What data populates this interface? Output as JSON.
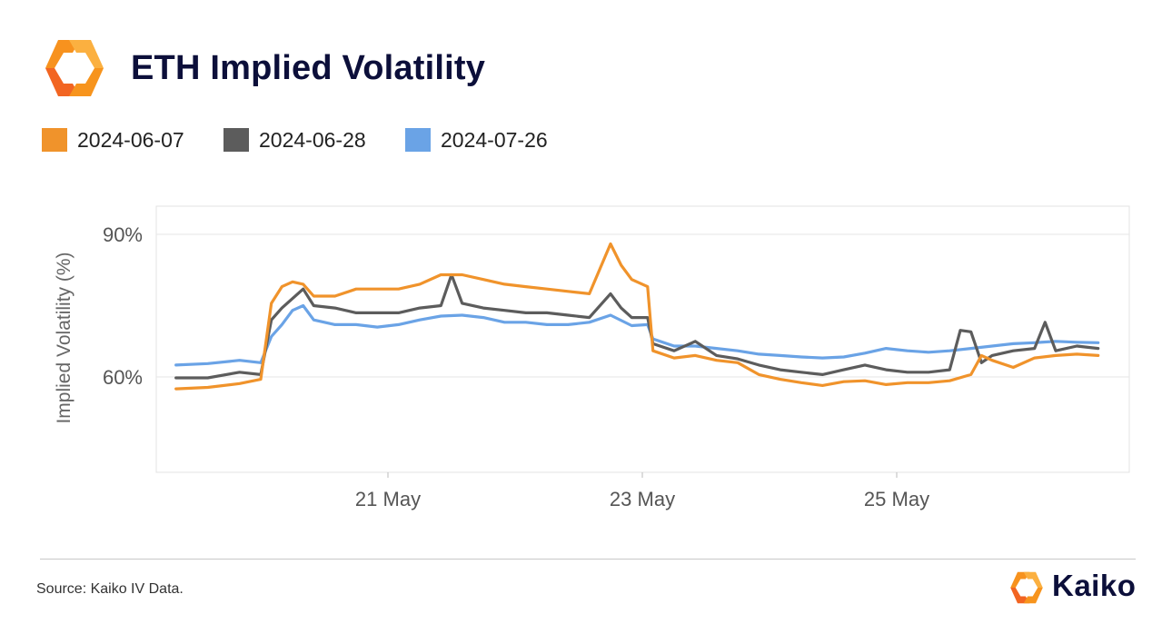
{
  "header": {
    "title": "ETH Implied Volatility"
  },
  "footer": {
    "source": "Source: Kaiko IV Data.",
    "brand": "Kaiko"
  },
  "colors": {
    "series_2024_06_07": "#f0932b",
    "series_2024_06_28": "#5c5c5c",
    "series_2024_07_26": "#6aa3e6",
    "title": "#0c0f3a",
    "brand_orange": "#f7921e"
  },
  "icons": {
    "main_logo": "kaiko-logo-icon",
    "footer_logo": "kaiko-logo-icon"
  },
  "chart_data": {
    "type": "line",
    "title": "ETH Implied Volatility",
    "xlabel": "",
    "ylabel": "Implied Volatility (%)",
    "x_ticks": [
      "21 May",
      "23 May",
      "25 May"
    ],
    "y_ticks": [
      "60%",
      "90%"
    ],
    "ylim": [
      40,
      92
    ],
    "xlim": [
      "2024-05-19 16:00",
      "2024-05-26 20:00"
    ],
    "grid": true,
    "legend_position": "top-left",
    "series": [
      {
        "name": "2024-06-07",
        "color": "#f0932b",
        "points": [
          [
            "2024-05-19 08:00",
            57.5
          ],
          [
            "2024-05-19 14:00",
            57.8
          ],
          [
            "2024-05-19 20:00",
            58.6
          ],
          [
            "2024-05-20 00:00",
            59.5
          ],
          [
            "2024-05-20 02:00",
            75.5
          ],
          [
            "2024-05-20 04:00",
            79.0
          ],
          [
            "2024-05-20 06:00",
            80.0
          ],
          [
            "2024-05-20 08:00",
            79.5
          ],
          [
            "2024-05-20 10:00",
            77.0
          ],
          [
            "2024-05-20 14:00",
            77.0
          ],
          [
            "2024-05-20 18:00",
            78.5
          ],
          [
            "2024-05-20 22:00",
            78.5
          ],
          [
            "2024-05-21 02:00",
            78.5
          ],
          [
            "2024-05-21 06:00",
            79.5
          ],
          [
            "2024-05-21 10:00",
            81.5
          ],
          [
            "2024-05-21 14:00",
            81.5
          ],
          [
            "2024-05-21 18:00",
            80.5
          ],
          [
            "2024-05-21 22:00",
            79.5
          ],
          [
            "2024-05-22 02:00",
            79.0
          ],
          [
            "2024-05-22 06:00",
            78.5
          ],
          [
            "2024-05-22 10:00",
            78.0
          ],
          [
            "2024-05-22 14:00",
            77.5
          ],
          [
            "2024-05-22 18:00",
            88.0
          ],
          [
            "2024-05-22 20:00",
            83.5
          ],
          [
            "2024-05-22 22:00",
            80.5
          ],
          [
            "2024-05-23 01:00",
            79.0
          ],
          [
            "2024-05-23 02:00",
            65.5
          ],
          [
            "2024-05-23 06:00",
            64.0
          ],
          [
            "2024-05-23 10:00",
            64.5
          ],
          [
            "2024-05-23 14:00",
            63.5
          ],
          [
            "2024-05-23 18:00",
            63.0
          ],
          [
            "2024-05-23 22:00",
            60.5
          ],
          [
            "2024-05-24 02:00",
            59.5
          ],
          [
            "2024-05-24 06:00",
            58.8
          ],
          [
            "2024-05-24 10:00",
            58.2
          ],
          [
            "2024-05-24 14:00",
            59.0
          ],
          [
            "2024-05-24 18:00",
            59.2
          ],
          [
            "2024-05-24 22:00",
            58.4
          ],
          [
            "2024-05-25 02:00",
            58.8
          ],
          [
            "2024-05-25 06:00",
            58.8
          ],
          [
            "2024-05-25 10:00",
            59.2
          ],
          [
            "2024-05-25 14:00",
            60.5
          ],
          [
            "2024-05-25 16:00",
            64.5
          ],
          [
            "2024-05-25 18:00",
            63.5
          ],
          [
            "2024-05-25 22:00",
            62.0
          ],
          [
            "2024-05-26 02:00",
            64.0
          ],
          [
            "2024-05-26 06:00",
            64.5
          ],
          [
            "2024-05-26 10:00",
            64.8
          ],
          [
            "2024-05-26 14:00",
            64.5
          ]
        ]
      },
      {
        "name": "2024-06-28",
        "color": "#5c5c5c",
        "points": [
          [
            "2024-05-19 08:00",
            59.8
          ],
          [
            "2024-05-19 14:00",
            59.8
          ],
          [
            "2024-05-19 20:00",
            61.0
          ],
          [
            "2024-05-20 00:00",
            60.5
          ],
          [
            "2024-05-20 02:00",
            72.0
          ],
          [
            "2024-05-20 04:00",
            74.5
          ],
          [
            "2024-05-20 08:00",
            78.5
          ],
          [
            "2024-05-20 10:00",
            75.0
          ],
          [
            "2024-05-20 14:00",
            74.5
          ],
          [
            "2024-05-20 18:00",
            73.5
          ],
          [
            "2024-05-20 22:00",
            73.5
          ],
          [
            "2024-05-21 02:00",
            73.5
          ],
          [
            "2024-05-21 06:00",
            74.5
          ],
          [
            "2024-05-21 10:00",
            75.0
          ],
          [
            "2024-05-21 12:00",
            81.5
          ],
          [
            "2024-05-21 14:00",
            75.5
          ],
          [
            "2024-05-21 18:00",
            74.5
          ],
          [
            "2024-05-21 22:00",
            74.0
          ],
          [
            "2024-05-22 02:00",
            73.5
          ],
          [
            "2024-05-22 06:00",
            73.5
          ],
          [
            "2024-05-22 10:00",
            73.0
          ],
          [
            "2024-05-22 14:00",
            72.5
          ],
          [
            "2024-05-22 18:00",
            77.5
          ],
          [
            "2024-05-22 20:00",
            74.5
          ],
          [
            "2024-05-22 22:00",
            72.5
          ],
          [
            "2024-05-23 01:00",
            72.5
          ],
          [
            "2024-05-23 02:00",
            67.0
          ],
          [
            "2024-05-23 06:00",
            65.5
          ],
          [
            "2024-05-23 10:00",
            67.5
          ],
          [
            "2024-05-23 14:00",
            64.5
          ],
          [
            "2024-05-23 18:00",
            63.8
          ],
          [
            "2024-05-23 22:00",
            62.5
          ],
          [
            "2024-05-24 02:00",
            61.5
          ],
          [
            "2024-05-24 06:00",
            61.0
          ],
          [
            "2024-05-24 10:00",
            60.5
          ],
          [
            "2024-05-24 14:00",
            61.5
          ],
          [
            "2024-05-24 18:00",
            62.5
          ],
          [
            "2024-05-24 22:00",
            61.5
          ],
          [
            "2024-05-25 02:00",
            61.0
          ],
          [
            "2024-05-25 06:00",
            61.0
          ],
          [
            "2024-05-25 10:00",
            61.5
          ],
          [
            "2024-05-25 12:00",
            69.8
          ],
          [
            "2024-05-25 14:00",
            69.5
          ],
          [
            "2024-05-25 16:00",
            63.0
          ],
          [
            "2024-05-25 18:00",
            64.5
          ],
          [
            "2024-05-25 22:00",
            65.5
          ],
          [
            "2024-05-26 02:00",
            66.0
          ],
          [
            "2024-05-26 04:00",
            71.5
          ],
          [
            "2024-05-26 06:00",
            65.5
          ],
          [
            "2024-05-26 10:00",
            66.5
          ],
          [
            "2024-05-26 14:00",
            66.0
          ]
        ]
      },
      {
        "name": "2024-07-26",
        "color": "#6aa3e6",
        "points": [
          [
            "2024-05-19 08:00",
            62.5
          ],
          [
            "2024-05-19 14:00",
            62.8
          ],
          [
            "2024-05-19 20:00",
            63.5
          ],
          [
            "2024-05-20 00:00",
            63.0
          ],
          [
            "2024-05-20 02:00",
            68.5
          ],
          [
            "2024-05-20 04:00",
            71.0
          ],
          [
            "2024-05-20 06:00",
            74.0
          ],
          [
            "2024-05-20 08:00",
            75.0
          ],
          [
            "2024-05-20 10:00",
            72.0
          ],
          [
            "2024-05-20 14:00",
            71.0
          ],
          [
            "2024-05-20 18:00",
            71.0
          ],
          [
            "2024-05-20 22:00",
            70.5
          ],
          [
            "2024-05-21 02:00",
            71.0
          ],
          [
            "2024-05-21 06:00",
            72.0
          ],
          [
            "2024-05-21 10:00",
            72.8
          ],
          [
            "2024-05-21 14:00",
            73.0
          ],
          [
            "2024-05-21 18:00",
            72.5
          ],
          [
            "2024-05-21 22:00",
            71.5
          ],
          [
            "2024-05-22 02:00",
            71.5
          ],
          [
            "2024-05-22 06:00",
            71.0
          ],
          [
            "2024-05-22 10:00",
            71.0
          ],
          [
            "2024-05-22 14:00",
            71.5
          ],
          [
            "2024-05-22 18:00",
            73.0
          ],
          [
            "2024-05-22 22:00",
            70.8
          ],
          [
            "2024-05-23 01:00",
            71.0
          ],
          [
            "2024-05-23 02:00",
            68.0
          ],
          [
            "2024-05-23 06:00",
            66.5
          ],
          [
            "2024-05-23 10:00",
            66.5
          ],
          [
            "2024-05-23 14:00",
            66.0
          ],
          [
            "2024-05-23 18:00",
            65.5
          ],
          [
            "2024-05-23 22:00",
            64.8
          ],
          [
            "2024-05-24 02:00",
            64.5
          ],
          [
            "2024-05-24 06:00",
            64.2
          ],
          [
            "2024-05-24 10:00",
            64.0
          ],
          [
            "2024-05-24 14:00",
            64.2
          ],
          [
            "2024-05-24 18:00",
            65.0
          ],
          [
            "2024-05-24 22:00",
            66.0
          ],
          [
            "2024-05-25 02:00",
            65.5
          ],
          [
            "2024-05-25 06:00",
            65.2
          ],
          [
            "2024-05-25 10:00",
            65.5
          ],
          [
            "2024-05-25 14:00",
            66.0
          ],
          [
            "2024-05-25 18:00",
            66.5
          ],
          [
            "2024-05-25 22:00",
            67.0
          ],
          [
            "2024-05-26 02:00",
            67.2
          ],
          [
            "2024-05-26 06:00",
            67.5
          ],
          [
            "2024-05-26 10:00",
            67.3
          ],
          [
            "2024-05-26 14:00",
            67.2
          ]
        ]
      }
    ]
  }
}
